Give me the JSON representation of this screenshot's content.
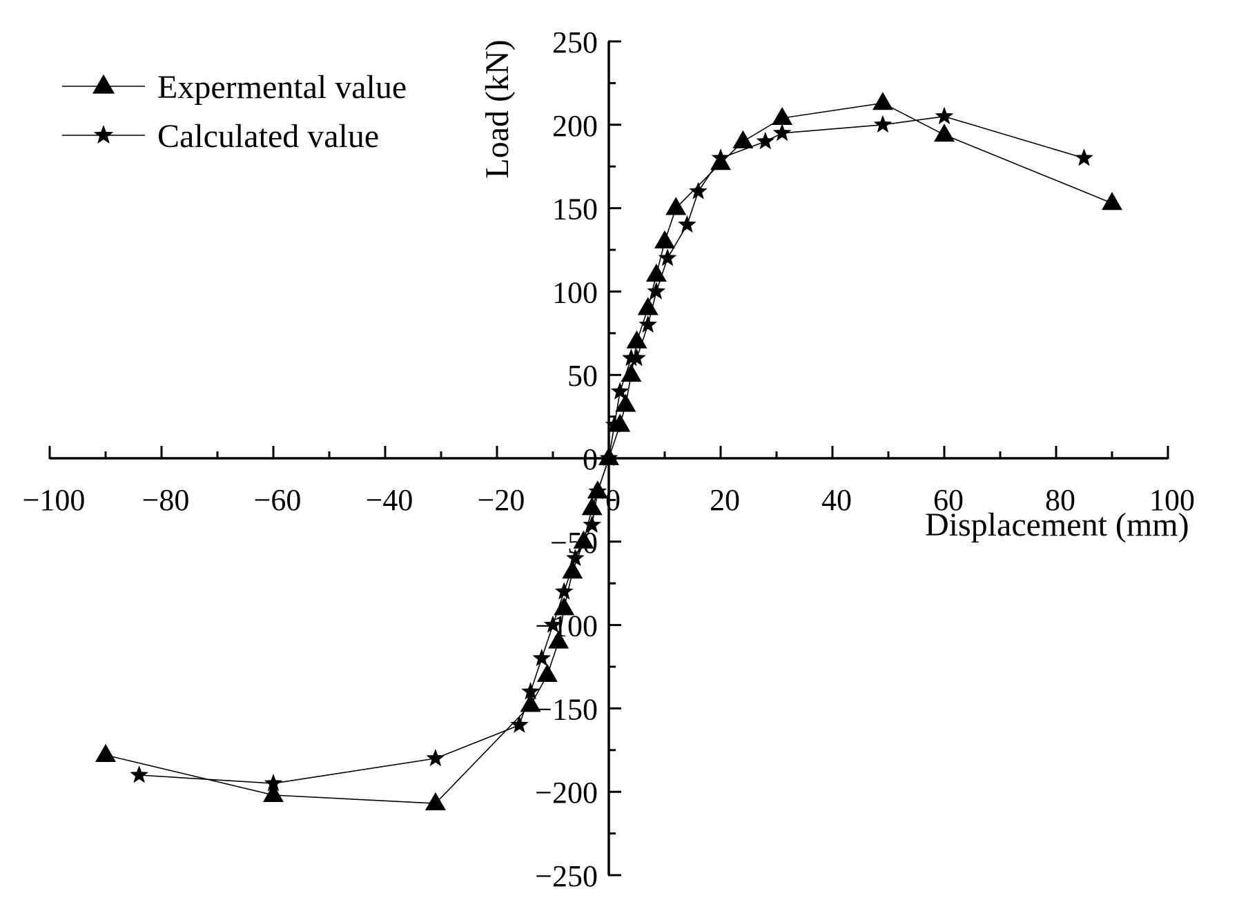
{
  "chart_data": {
    "type": "line",
    "title": "",
    "xlabel": "Displacement (mm)",
    "ylabel": "Load (kN)",
    "xlim": [
      -100,
      100
    ],
    "ylim": [
      -250,
      250
    ],
    "xticks": [
      -100,
      -80,
      -60,
      -40,
      -20,
      0,
      20,
      40,
      60,
      80,
      100
    ],
    "yticks": [
      -250,
      -200,
      -150,
      -100,
      -50,
      0,
      50,
      100,
      150,
      200,
      250
    ],
    "xtick_labels": [
      "−100",
      "−80",
      "−60",
      "−40",
      "−20",
      "0",
      "20",
      "40",
      "60",
      "80",
      "100"
    ],
    "ytick_labels": [
      "−250",
      "−200",
      "−150",
      "−100",
      "−50",
      "0",
      "50",
      "100",
      "150",
      "200",
      "250"
    ],
    "grid": false,
    "legend_position": "top-left",
    "series": [
      {
        "name": "Expermental value",
        "marker": "triangle",
        "x": [
          -90,
          -60,
          -31,
          -14,
          -11,
          -9,
          -8,
          -6.5,
          -4.5,
          -3,
          -2,
          0,
          2,
          3,
          4,
          5,
          7,
          8.5,
          10,
          12,
          20,
          24,
          31,
          49,
          60,
          90
        ],
        "y": [
          -178,
          -202,
          -207,
          -148,
          -130,
          -110,
          -90,
          -68,
          -50,
          -30,
          -20,
          0,
          20,
          32,
          50,
          70,
          90,
          110,
          130,
          150,
          177,
          190,
          204,
          213,
          194,
          153
        ]
      },
      {
        "name": "Calculated value",
        "marker": "star",
        "x": [
          -84,
          -60,
          -31,
          -16,
          -14,
          -12,
          -10,
          -8,
          -6,
          -3,
          -2,
          0,
          1,
          2,
          4,
          5,
          7,
          8.5,
          10.5,
          14,
          16,
          20,
          28,
          31,
          49,
          60,
          85
        ],
        "y": [
          -190,
          -195,
          -180,
          -160,
          -140,
          -120,
          -100,
          -80,
          -60,
          -40,
          -20,
          0,
          20,
          40,
          60,
          60,
          80,
          100,
          120,
          140,
          160,
          180,
          190,
          195,
          200,
          205,
          180
        ]
      }
    ]
  }
}
